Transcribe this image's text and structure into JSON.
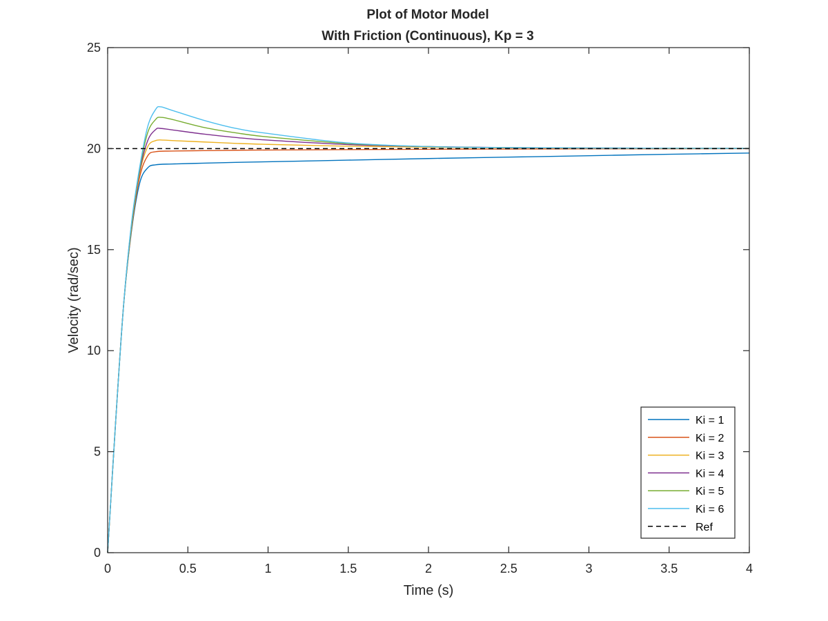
{
  "chart_data": {
    "type": "line",
    "title": "Plot of Motor Model",
    "subtitle": "With Friction (Continuous), Kp = 3",
    "xlabel": "Time (s)",
    "ylabel": "Velocity (rad/sec)",
    "xlim": [
      0,
      4
    ],
    "ylim": [
      0,
      25
    ],
    "xticks": [
      0,
      0.5,
      1,
      1.5,
      2,
      2.5,
      3,
      3.5,
      4
    ],
    "xtick_labels": [
      "0",
      "0.5",
      "1",
      "1.5",
      "2",
      "2.5",
      "3",
      "3.5",
      "4"
    ],
    "yticks": [
      0,
      5,
      10,
      15,
      20,
      25
    ],
    "ytick_labels": [
      "0",
      "5",
      "10",
      "15",
      "20",
      "25"
    ],
    "grid": false,
    "legend_position": "bottom-right",
    "series": [
      {
        "name": "Ki = 1",
        "color": "#0072BD",
        "style": "solid",
        "x": [
          0,
          0.05,
          0.1,
          0.15,
          0.2,
          0.25,
          0.3,
          0.4,
          0.6,
          0.8,
          1,
          1.5,
          2,
          2.5,
          3,
          3.5,
          4
        ],
        "y": [
          0,
          6.5,
          12.3,
          16.0,
          18.3,
          19.05,
          19.2,
          19.24,
          19.28,
          19.32,
          19.35,
          19.43,
          19.51,
          19.58,
          19.65,
          19.72,
          19.78
        ]
      },
      {
        "name": "Ki = 2",
        "color": "#D95319",
        "style": "solid",
        "x": [
          0,
          0.05,
          0.1,
          0.15,
          0.2,
          0.25,
          0.3,
          0.4,
          0.6,
          0.8,
          1,
          1.5,
          2,
          2.5,
          3,
          3.5,
          4
        ],
        "y": [
          0,
          6.5,
          12.3,
          16.1,
          18.6,
          19.65,
          19.85,
          19.88,
          19.9,
          19.92,
          19.93,
          19.95,
          19.97,
          19.98,
          19.99,
          19.99,
          20.0
        ]
      },
      {
        "name": "Ki = 3",
        "color": "#EDB120",
        "style": "solid",
        "x": [
          0,
          0.05,
          0.1,
          0.15,
          0.2,
          0.25,
          0.3,
          0.35,
          0.4,
          0.6,
          0.8,
          1,
          1.5,
          2,
          2.5,
          3,
          3.5,
          4
        ],
        "y": [
          0,
          6.5,
          12.3,
          16.2,
          18.8,
          20.1,
          20.4,
          20.42,
          20.4,
          20.33,
          20.26,
          20.21,
          20.12,
          20.07,
          20.04,
          20.02,
          20.01,
          20.01
        ]
      },
      {
        "name": "Ki = 4",
        "color": "#7E2F8E",
        "style": "solid",
        "x": [
          0,
          0.05,
          0.1,
          0.15,
          0.2,
          0.25,
          0.3,
          0.33,
          0.4,
          0.6,
          0.8,
          1,
          1.5,
          2,
          2.5,
          3,
          3.5,
          4
        ],
        "y": [
          0,
          6.5,
          12.3,
          16.3,
          18.9,
          20.4,
          20.95,
          21.0,
          20.93,
          20.72,
          20.55,
          20.42,
          20.2,
          20.1,
          20.05,
          20.03,
          20.02,
          20.01
        ]
      },
      {
        "name": "Ki = 5",
        "color": "#77AC30",
        "style": "solid",
        "x": [
          0,
          0.05,
          0.1,
          0.15,
          0.2,
          0.25,
          0.3,
          0.33,
          0.4,
          0.6,
          0.8,
          1,
          1.5,
          2,
          2.5,
          3,
          3.5,
          4
        ],
        "y": [
          0,
          6.5,
          12.3,
          16.3,
          19.0,
          20.8,
          21.45,
          21.55,
          21.45,
          21.05,
          20.78,
          20.58,
          20.25,
          20.1,
          20.05,
          20.03,
          20.02,
          20.01
        ]
      },
      {
        "name": "Ki = 6",
        "color": "#4DBEEE",
        "style": "solid",
        "x": [
          0,
          0.05,
          0.1,
          0.15,
          0.2,
          0.25,
          0.3,
          0.33,
          0.4,
          0.6,
          0.8,
          1,
          1.5,
          2,
          2.5,
          3,
          3.5,
          4
        ],
        "y": [
          0,
          6.5,
          12.3,
          16.4,
          19.1,
          21.1,
          21.95,
          22.07,
          21.9,
          21.4,
          21.0,
          20.75,
          20.28,
          20.1,
          20.05,
          20.03,
          20.02,
          20.01
        ]
      },
      {
        "name": "Ref",
        "color": "#000000",
        "style": "dashed",
        "x": [
          0,
          4
        ],
        "y": [
          20,
          20
        ]
      }
    ]
  }
}
